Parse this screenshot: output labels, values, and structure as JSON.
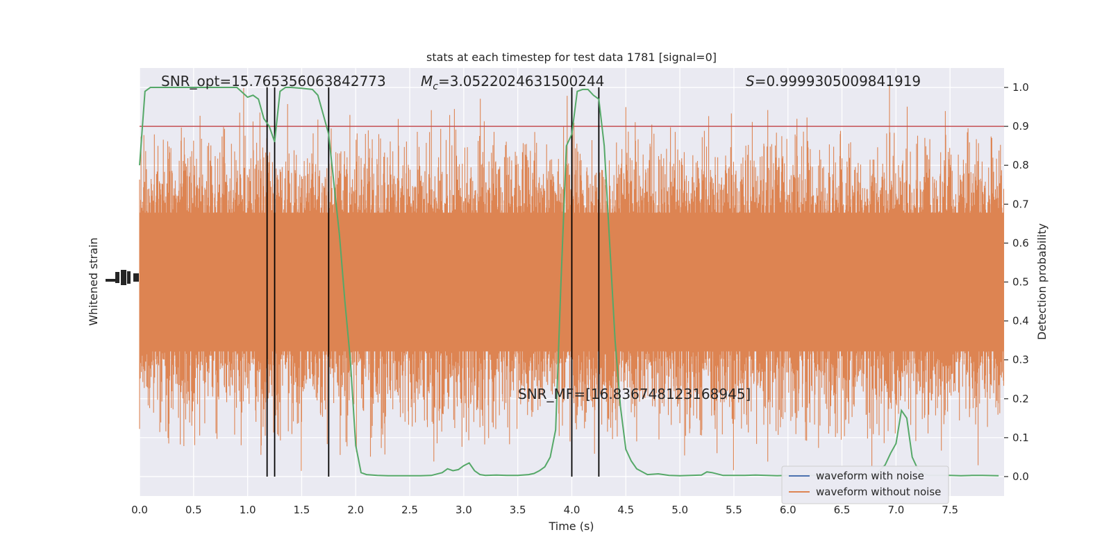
{
  "chart_data": {
    "type": "line",
    "title": "stats at each timestep for test data 1781 [signal=0]",
    "xlabel": "Time (s)",
    "ylabel_left": "Whitened strain",
    "ylabel_right": "Detection probability",
    "xlim": [
      0,
      8
    ],
    "ylim_right": [
      -0.05,
      1.05
    ],
    "x_ticks": [
      "0.0",
      "0.5",
      "1.0",
      "1.5",
      "2.0",
      "2.5",
      "3.0",
      "3.5",
      "4.0",
      "4.5",
      "5.0",
      "5.5",
      "6.0",
      "6.5",
      "7.0",
      "7.5"
    ],
    "x_tick_values": [
      0,
      0.5,
      1,
      1.5,
      2,
      2.5,
      3,
      3.5,
      4,
      4.5,
      5,
      5.5,
      6,
      6.5,
      7,
      7.5
    ],
    "y_right_ticks": [
      "0.0",
      "0.1",
      "0.2",
      "0.3",
      "0.4",
      "0.5",
      "0.6",
      "0.7",
      "0.8",
      "0.9",
      "1.0"
    ],
    "y_right_tick_values": [
      0,
      0.1,
      0.2,
      0.3,
      0.4,
      0.5,
      0.6,
      0.7,
      0.8,
      0.9,
      1.0
    ],
    "grid": true,
    "legend_position": "lower-right",
    "annotations": {
      "snr_opt": "SNR_opt=15.765356063842773",
      "mc_symbol": "M",
      "mc_sub": "c",
      "mc_value": "=3.0522024631500244",
      "s_symbol": "S",
      "s_value": "=0.9999305009841919",
      "snr_mf": "SNR_MF=[16.836748123168945]"
    },
    "threshold": 0.9,
    "vertical_lines": [
      1.18,
      1.25,
      1.75,
      4.0,
      4.25
    ],
    "detection_probability": {
      "x": [
        0.0,
        0.05,
        0.1,
        0.2,
        0.3,
        0.4,
        0.5,
        0.6,
        0.7,
        0.8,
        0.9,
        1.0,
        1.05,
        1.1,
        1.15,
        1.2,
        1.25,
        1.3,
        1.35,
        1.4,
        1.5,
        1.6,
        1.65,
        1.7,
        1.75,
        1.8,
        1.85,
        1.9,
        1.95,
        2.0,
        2.05,
        2.1,
        2.2,
        2.3,
        2.4,
        2.5,
        2.6,
        2.7,
        2.8,
        2.85,
        2.9,
        2.95,
        3.0,
        3.05,
        3.1,
        3.15,
        3.2,
        3.3,
        3.4,
        3.5,
        3.6,
        3.65,
        3.7,
        3.75,
        3.8,
        3.85,
        3.9,
        3.95,
        4.0,
        4.05,
        4.1,
        4.15,
        4.2,
        4.25,
        4.3,
        4.35,
        4.4,
        4.45,
        4.5,
        4.55,
        4.6,
        4.7,
        4.8,
        4.9,
        5.0,
        5.1,
        5.2,
        5.25,
        5.3,
        5.4,
        5.5,
        5.6,
        5.7,
        5.8,
        5.9,
        6.0,
        6.1,
        6.2,
        6.3,
        6.4,
        6.5,
        6.6,
        6.7,
        6.8,
        6.9,
        6.95,
        7.0,
        7.05,
        7.1,
        7.15,
        7.2,
        7.25,
        7.3,
        7.4,
        7.5,
        7.6,
        7.7,
        7.8,
        7.95
      ],
      "y": [
        0.8,
        0.99,
        1.0,
        1.0,
        1.0,
        1.0,
        1.0,
        1.0,
        1.0,
        1.0,
        1.0,
        0.975,
        0.98,
        0.97,
        0.92,
        0.9,
        0.86,
        0.99,
        1.0,
        1.0,
        0.998,
        0.995,
        0.98,
        0.93,
        0.88,
        0.75,
        0.62,
        0.45,
        0.3,
        0.08,
        0.01,
        0.005,
        0.003,
        0.002,
        0.002,
        0.002,
        0.002,
        0.003,
        0.01,
        0.02,
        0.015,
        0.018,
        0.028,
        0.035,
        0.015,
        0.005,
        0.003,
        0.004,
        0.003,
        0.003,
        0.005,
        0.008,
        0.015,
        0.025,
        0.05,
        0.12,
        0.5,
        0.85,
        0.88,
        0.99,
        0.995,
        0.995,
        0.98,
        0.97,
        0.85,
        0.6,
        0.35,
        0.18,
        0.07,
        0.04,
        0.02,
        0.005,
        0.007,
        0.003,
        0.002,
        0.003,
        0.004,
        0.012,
        0.01,
        0.003,
        0.003,
        0.003,
        0.004,
        0.003,
        0.002,
        0.003,
        0.003,
        0.003,
        0.003,
        0.003,
        0.003,
        0.003,
        0.003,
        0.002,
        0.03,
        0.06,
        0.085,
        0.17,
        0.15,
        0.05,
        0.02,
        0.008,
        0.003,
        0.003,
        0.003,
        0.002,
        0.003,
        0.003,
        0.002
      ]
    },
    "series": [
      {
        "name": "waveform with noise",
        "color": "#4c72b0"
      },
      {
        "name": "waveform without noise",
        "color": "#dd8452"
      }
    ],
    "colors": {
      "probability": "#55a868",
      "threshold": "#c44e52",
      "vlines": "#000000",
      "axes_bg": "#eaeaf2",
      "grid": "#ffffff"
    }
  }
}
